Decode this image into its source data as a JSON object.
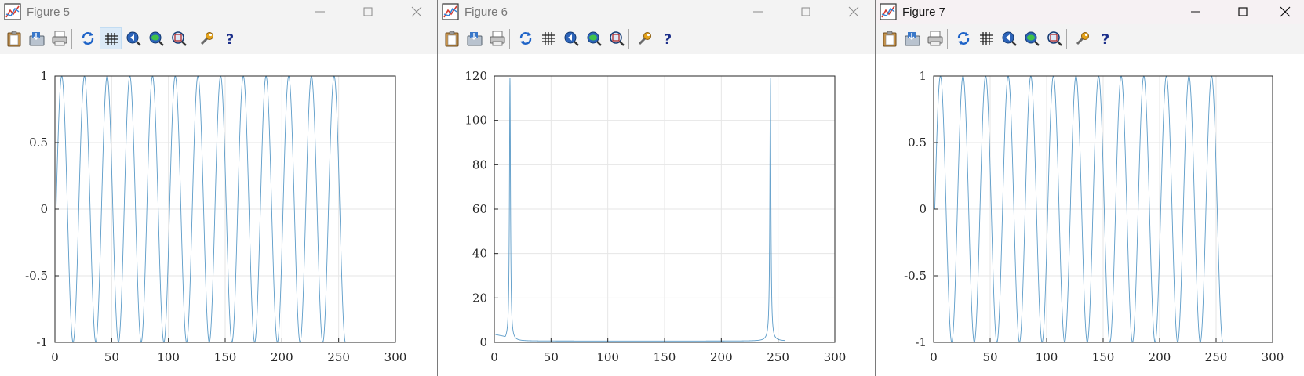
{
  "windows": [
    {
      "id": "figure-5",
      "title": "Figure 5",
      "active": false,
      "chart_data": {
        "type": "line",
        "title": "",
        "xlabel": "",
        "ylabel": "",
        "xlim": [
          0,
          300
        ],
        "ylim": [
          -1,
          1
        ],
        "xticks": [
          0,
          50,
          100,
          150,
          200,
          250,
          300
        ],
        "yticks": [
          -1,
          -0.5,
          0,
          0.5,
          1
        ],
        "ytick_labels": [
          "-1",
          "-0.5",
          "0",
          "0.5",
          "1"
        ],
        "grid": true,
        "series": [
          {
            "x_start": 1,
            "x_end": 256,
            "amplitude": 1,
            "period": 20,
            "waveform": "sine",
            "color": "#5b9bc8"
          }
        ]
      }
    },
    {
      "id": "figure-6",
      "title": "Figure 6",
      "active": false,
      "chart_data": {
        "type": "line",
        "title": "",
        "xlabel": "",
        "ylabel": "",
        "xlim": [
          0,
          300
        ],
        "ylim": [
          0,
          120
        ],
        "xticks": [
          0,
          50,
          100,
          150,
          200,
          250,
          300
        ],
        "yticks": [
          0,
          20,
          40,
          60,
          80,
          100,
          120
        ],
        "ytick_labels": [
          "0",
          "20",
          "40",
          "60",
          "80",
          "100",
          "120"
        ],
        "grid": true,
        "series": [
          {
            "x_start": 1,
            "x_end": 256,
            "peaks": [
              13.8,
              243.2
            ],
            "peak_value": 119,
            "baseline": 0.6,
            "start_value": 3.5,
            "color": "#5b9bc8"
          }
        ]
      }
    },
    {
      "id": "figure-7",
      "title": "Figure 7",
      "active": true,
      "chart_data": {
        "type": "line",
        "title": "",
        "xlabel": "",
        "ylabel": "",
        "xlim": [
          0,
          300
        ],
        "ylim": [
          -1,
          1
        ],
        "xticks": [
          0,
          50,
          100,
          150,
          200,
          250,
          300
        ],
        "yticks": [
          -1,
          -0.5,
          0,
          0.5,
          1
        ],
        "ytick_labels": [
          "-1",
          "-0.5",
          "0",
          "0.5",
          "1"
        ],
        "grid": true,
        "series": [
          {
            "x_start": 1,
            "x_end": 256,
            "amplitude": 1,
            "period": 20,
            "waveform": "sine",
            "color": "#5b9bc8"
          }
        ]
      }
    }
  ],
  "toolbar_icons": [
    "clipboard-icon",
    "save-icon",
    "print-icon",
    "refresh-icon",
    "grid-icon",
    "zoom-out-icon",
    "zoom-in-icon",
    "zoom-fit-icon",
    "properties-wrench-icon",
    "help-icon"
  ],
  "colors": {
    "titlebar_bg": "#f3f3f3",
    "toolbar_bg": "#f3f3f3",
    "line": "#5b9bc8",
    "axes": "#262626",
    "grid": "#e6e6e6"
  }
}
